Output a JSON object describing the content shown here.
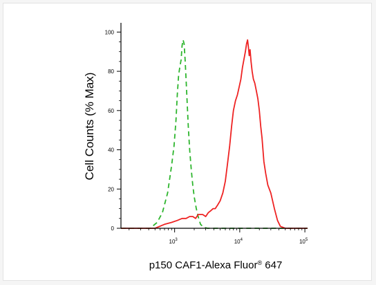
{
  "chart_data": {
    "type": "line",
    "title": "",
    "xlabel": "p150 CAF1-Alexa Fluor® 647",
    "xlabel_main": "p150 CAF1-Alexa Fluor",
    "xlabel_reg": "®",
    "xlabel_tail": " 647",
    "ylabel": "Cell Counts (% Max)",
    "x_scale": "log",
    "xlim": [
      150,
      110000
    ],
    "ylim": [
      0,
      104
    ],
    "x_ticks": [
      {
        "value": 1000,
        "base": "10",
        "exp": "3"
      },
      {
        "value": 10000,
        "base": "10",
        "exp": "4"
      },
      {
        "value": 100000,
        "base": "10",
        "exp": "5"
      }
    ],
    "y_ticks": [
      {
        "value": 0,
        "label": "0"
      },
      {
        "value": 20,
        "label": "20"
      },
      {
        "value": 40,
        "label": "40"
      },
      {
        "value": 60,
        "label": "60"
      },
      {
        "value": 80,
        "label": "80"
      },
      {
        "value": 100,
        "label": "100"
      }
    ],
    "grid": false,
    "legend": "none",
    "series": [
      {
        "color": "#2db52d",
        "style": "dashed",
        "x": [
          150,
          420,
          540,
          650,
          780,
          900,
          980,
          1050,
          1100,
          1150,
          1200,
          1260,
          1300,
          1350,
          1400,
          1450,
          1500,
          1560,
          1620,
          1700,
          1800,
          1900,
          2000,
          2150,
          2300,
          2500,
          2800,
          3200,
          5000,
          20000,
          110000
        ],
        "y": [
          0,
          0,
          3,
          8,
          18,
          32,
          42,
          55,
          68,
          78,
          82,
          86,
          93,
          96,
          94,
          86,
          76,
          64,
          52,
          40,
          30,
          22,
          16,
          10,
          6,
          2,
          0.5,
          0,
          0,
          0,
          0
        ]
      },
      {
        "color": "#ee2222",
        "style": "solid",
        "x": [
          150,
          500,
          700,
          900,
          1100,
          1300,
          1500,
          1700,
          1900,
          2100,
          2300,
          2500,
          2700,
          3000,
          3300,
          3600,
          3900,
          4200,
          4600,
          5000,
          5500,
          6000,
          6500,
          7000,
          7500,
          8000,
          8600,
          9200,
          9800,
          10400,
          11000,
          11600,
          12200,
          12700,
          13200,
          13600,
          14000,
          14400,
          14900,
          15500,
          16200,
          17000,
          18000,
          19000,
          20000,
          21000,
          22000,
          23500,
          25000,
          27000,
          30000,
          34000,
          38000,
          42000,
          50000,
          110000
        ],
        "y": [
          0,
          0,
          2,
          3,
          4,
          5,
          5,
          6,
          6,
          5,
          7,
          7,
          7,
          6,
          8,
          9,
          10,
          10,
          12,
          14,
          18,
          24,
          33,
          42,
          52,
          60,
          65,
          68,
          72,
          76,
          82,
          86,
          90,
          94,
          96,
          92,
          88,
          91,
          85,
          80,
          76,
          74,
          70,
          66,
          60,
          52,
          46,
          34,
          28,
          22,
          18,
          10,
          4,
          1,
          0,
          0
        ]
      }
    ]
  }
}
